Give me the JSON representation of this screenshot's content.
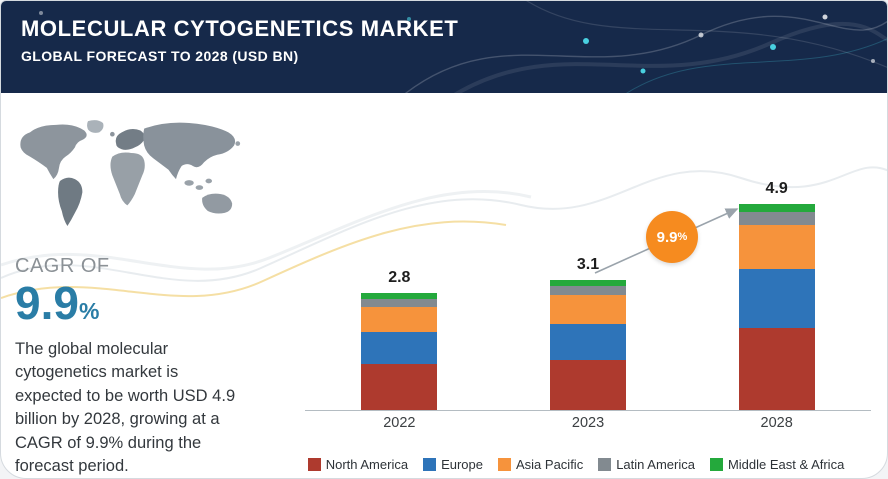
{
  "header": {
    "title": "MOLECULAR CYTOGENETICS MARKET",
    "subtitle": "GLOBAL FORECAST TO 2028 (USD BN)"
  },
  "sidebar": {
    "cagr_label": "CAGR OF",
    "cagr_value": "9.9",
    "cagr_unit": "%",
    "description": "The global molecular cytogenetics market is expected to be worth USD 4.9 billion by 2028, growing at a CAGR of 9.9% during the forecast period."
  },
  "annotation": {
    "growth_value": "9.9",
    "growth_unit": "%"
  },
  "chart_data": {
    "type": "bar",
    "stacked": true,
    "unit": "USD BN",
    "categories": [
      "2022",
      "2023",
      "2028"
    ],
    "totals": [
      2.8,
      3.1,
      4.9
    ],
    "series": [
      {
        "name": "North America",
        "color": "#ae3a2e",
        "values": [
          1.1,
          1.2,
          1.95
        ]
      },
      {
        "name": "Europe",
        "color": "#2e74b9",
        "values": [
          0.75,
          0.85,
          1.4
        ]
      },
      {
        "name": "Asia Pacific",
        "color": "#f6933c",
        "values": [
          0.6,
          0.68,
          1.05
        ]
      },
      {
        "name": "Latin America",
        "color": "#828a90",
        "values": [
          0.2,
          0.22,
          0.3
        ]
      },
      {
        "name": "Middle East & Africa",
        "color": "#24a93c",
        "values": [
          0.15,
          0.15,
          0.2
        ]
      }
    ],
    "ylim": [
      0,
      5.5
    ],
    "grid": false,
    "legend_position": "bottom"
  }
}
